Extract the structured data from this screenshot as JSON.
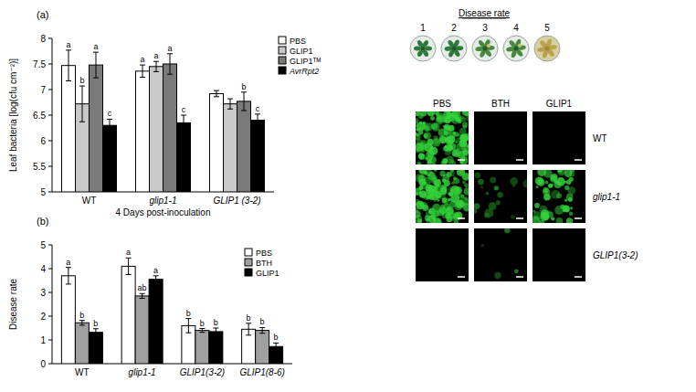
{
  "chart_data": [
    {
      "type": "bar",
      "title": "(a)",
      "y_label": "Leaf bacteria [log(cfu cm⁻²)]",
      "x_label": "4 Days post-inoculation",
      "categories": [
        "WT",
        "glip1-1",
        "GLIP1 (3-2)"
      ],
      "series": [
        {
          "name": "PBS",
          "color": "#ffffff",
          "values": [
            7.47,
            7.36,
            6.92
          ],
          "errors": [
            0.3,
            0.12,
            0.06
          ],
          "letters": [
            "a",
            "a",
            null
          ]
        },
        {
          "name": "GLIP1",
          "color": "#c8c8c8",
          "values": [
            6.72,
            7.45,
            6.72
          ],
          "errors": [
            0.35,
            0.1,
            0.1
          ],
          "letters": [
            "b",
            "a",
            null
          ]
        },
        {
          "name": "GLIP1ᵀᴹ",
          "color": "#7a7a7a",
          "values": [
            7.48,
            7.5,
            6.77
          ],
          "errors": [
            0.25,
            0.2,
            0.18
          ],
          "letters": [
            "a",
            "a",
            "b"
          ]
        },
        {
          "name": "AvrRpt2",
          "color": "#000000",
          "values": [
            6.3,
            6.35,
            6.4
          ],
          "errors": [
            0.12,
            0.15,
            0.12
          ],
          "letters": [
            "c",
            "c",
            "c"
          ]
        }
      ],
      "ylim": [
        5,
        8
      ],
      "yticks": [
        5,
        5.5,
        6,
        6.5,
        7,
        7.5,
        8
      ],
      "legend": "top-right",
      "grid": false
    },
    {
      "type": "bar",
      "title": "(b)",
      "y_label": "Disease rate",
      "categories": [
        "WT",
        "glip1-1",
        "GLIP1(3-2)",
        "GLIP1(8-6)"
      ],
      "series": [
        {
          "name": "PBS",
          "color": "#ffffff",
          "values": [
            3.7,
            4.1,
            1.6,
            1.45
          ],
          "errors": [
            0.35,
            0.35,
            0.3,
            0.25
          ],
          "letters": [
            "a",
            "a",
            "b",
            "b"
          ]
        },
        {
          "name": "BTH",
          "color": "#a0a0a0",
          "values": [
            1.72,
            2.85,
            1.4,
            1.4
          ],
          "errors": [
            0.1,
            0.1,
            0.08,
            0.12
          ],
          "letters": [
            "b",
            "ab",
            "b",
            "b"
          ]
        },
        {
          "name": "GLIP1",
          "color": "#000000",
          "values": [
            1.32,
            3.55,
            1.35,
            0.72
          ],
          "errors": [
            0.15,
            0.15,
            0.15,
            0.15
          ],
          "letters": [
            "b",
            "a",
            "b",
            "b"
          ]
        }
      ],
      "ylim": [
        0,
        5
      ],
      "yticks": [
        0,
        1,
        2,
        3,
        4,
        5
      ],
      "legend": "top-right",
      "grid": false
    }
  ],
  "image_panel": {
    "title": "Disease rate",
    "scale": [
      1,
      2,
      3,
      4,
      5
    ],
    "columns": [
      "PBS",
      "BTH",
      "GLIP1"
    ],
    "rows": [
      "WT",
      "glip1-1",
      "GLIP1(3-2)"
    ]
  }
}
